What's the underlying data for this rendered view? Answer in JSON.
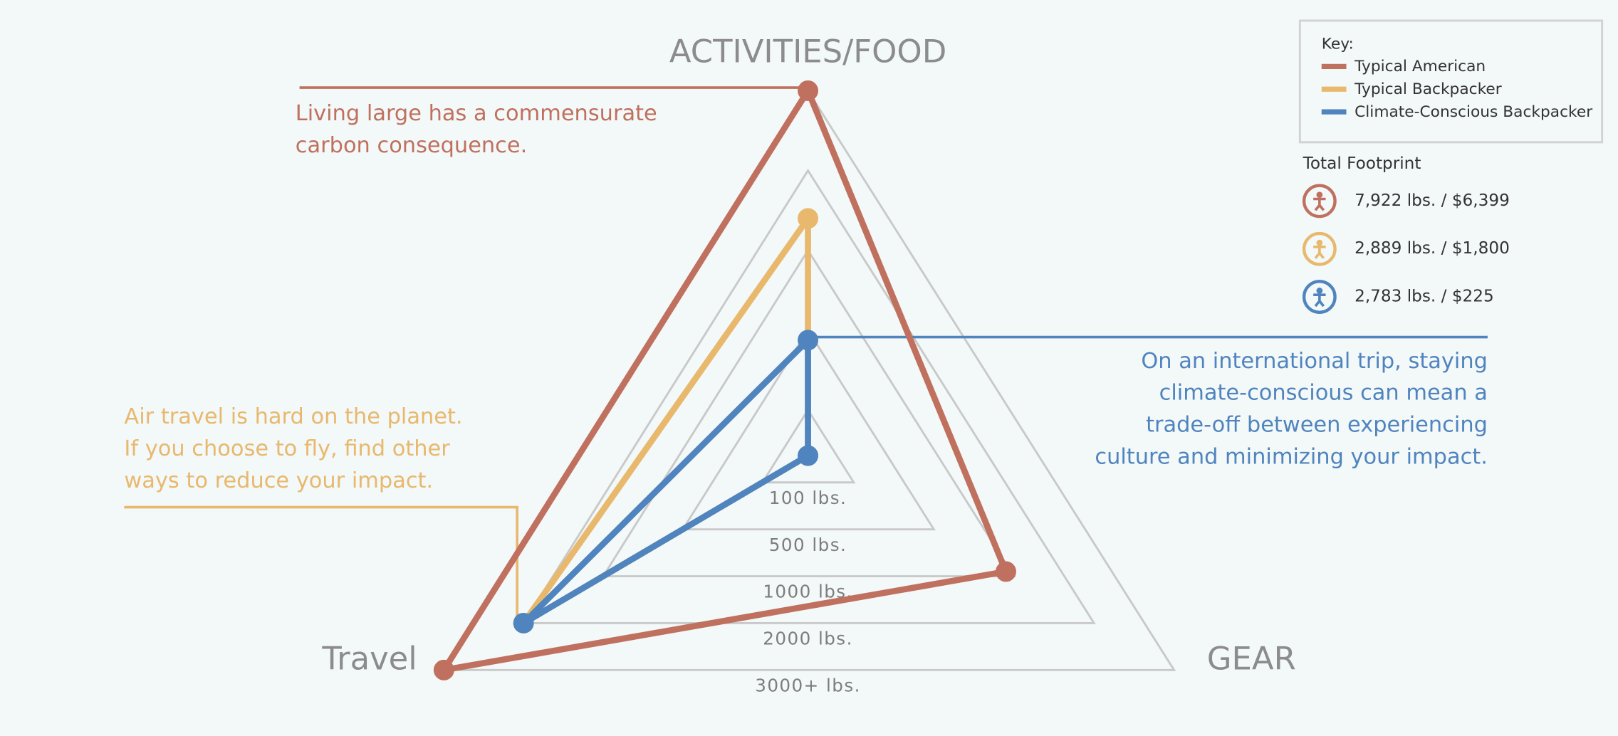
{
  "chart_data": {
    "type": "radar",
    "axes": [
      "ACTIVITIES/FOOD",
      "GEAR",
      "Travel"
    ],
    "rticks": [
      {
        "value": 100,
        "label": "100 lbs."
      },
      {
        "value": 500,
        "label": "500 lbs."
      },
      {
        "value": 1000,
        "label": "1000 lbs."
      },
      {
        "value": 2000,
        "label": "2000 lbs."
      },
      {
        "value": 3000,
        "label": "3000+ lbs."
      }
    ],
    "rlim": [
      0,
      3000
    ],
    "legend_title": "Key:",
    "footprint_title": "Total Footprint",
    "series": [
      {
        "name": "Typical American",
        "color": "#c0705e",
        "values": [
          3000,
          950,
          3000
        ],
        "footprint": "7,922 lbs. / $6,399"
      },
      {
        "name": "Typical Backpacker",
        "color": "#e8b86d",
        "values": [
          1400,
          0,
          2000
        ],
        "footprint": "2,889 lbs. / $1,800"
      },
      {
        "name": "Climate-Conscious Backpacker",
        "color": "#4f84bf",
        "values": [
          450,
          0,
          2000
        ],
        "footprint": "2,783 lbs. / $225"
      }
    ],
    "annotations": [
      {
        "lines": [
          "Living large has a commensurate",
          "carbon consequence."
        ],
        "color": "#c0705e"
      },
      {
        "lines": [
          "Air travel is hard on the planet.",
          "If you choose to fly, find other",
          "ways to reduce your impact."
        ],
        "color": "#e8b86d"
      },
      {
        "lines": [
          "On an international trip, staying",
          "climate-conscious can mean a",
          "trade-off between experiencing",
          "culture and minimizing your impact."
        ],
        "color": "#4f84bf"
      }
    ]
  }
}
